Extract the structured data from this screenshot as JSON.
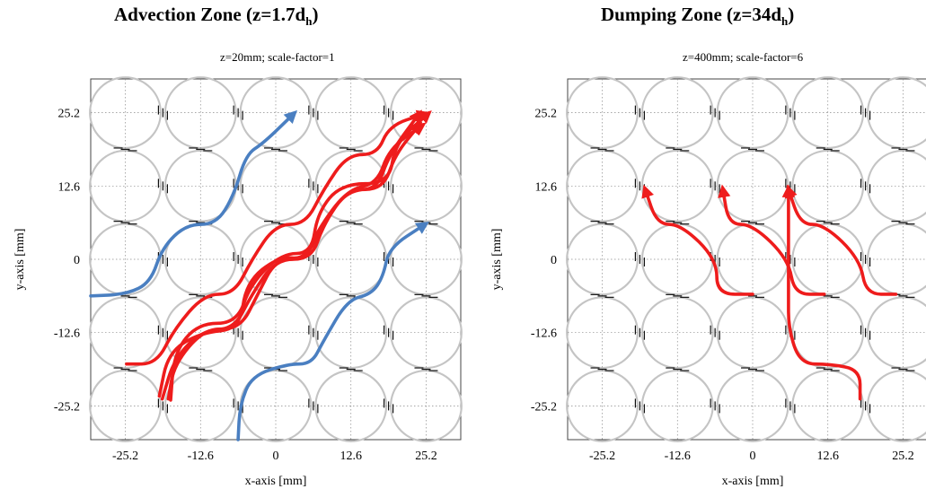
{
  "panels": [
    {
      "title_main": "Advection Zone (z=1.7d",
      "title_sub": "h",
      "title_close": ")",
      "subtitle": "z=20mm; scale-factor=1",
      "xlabel": "x-axis [mm]",
      "ylabel": "y-axis [mm]"
    },
    {
      "title_main": "Dumping Zone (z=34d",
      "title_sub": "h",
      "title_close": ")",
      "subtitle": "z=400mm; scale-factor=6",
      "xlabel": "x-axis [mm]",
      "ylabel": "y-axis [mm]"
    }
  ],
  "colors": {
    "red": "#ee1c1c",
    "blue": "#4a7fc1",
    "rod": "#c4c4c4",
    "grid": "#8a8a8a"
  },
  "chart_data": [
    {
      "type": "scatter",
      "title": "Advection Zone (z=1.7dh)",
      "subtitle": "z=20mm; scale-factor=1",
      "xlabel": "x-axis [mm]",
      "ylabel": "y-axis [mm]",
      "xticks": [
        -25.2,
        -12.6,
        0,
        12.6,
        25.2
      ],
      "yticks": [
        25.2,
        12.6,
        0,
        -12.6,
        -25.2
      ],
      "xlim": [
        -31,
        31
      ],
      "ylim": [
        -31,
        31
      ],
      "rods": {
        "pitch": 12.6,
        "centers": [
          -25.2,
          -12.6,
          0,
          12.6,
          25.2
        ]
      },
      "streams": [
        {
          "color": "red",
          "points": [
            [
              -25,
              -18
            ],
            [
              -20,
              -18
            ],
            [
              -17,
              -12
            ],
            [
              -12,
              -6
            ],
            [
              -7,
              -6
            ],
            [
              -4,
              0
            ],
            [
              0,
              6
            ],
            [
              5,
              6
            ],
            [
              8,
              12
            ],
            [
              12,
              18
            ],
            [
              17,
              18
            ],
            [
              19,
              23
            ],
            [
              25,
              25
            ]
          ]
        },
        {
          "color": "red",
          "points": [
            [
              -19,
              -24
            ],
            [
              -17,
              -17
            ],
            [
              -12,
              -12
            ],
            [
              -6,
              -12
            ],
            [
              -3,
              -6
            ],
            [
              0,
              0
            ],
            [
              5,
              0
            ],
            [
              8,
              6
            ],
            [
              12,
              12
            ],
            [
              17,
              12
            ],
            [
              19,
              18
            ],
            [
              24,
              25
            ]
          ]
        },
        {
          "color": "red",
          "points": [
            [
              -18,
              -24
            ],
            [
              -17,
              -18
            ],
            [
              -12,
              -12
            ],
            [
              -7,
              -12
            ],
            [
              -4,
              -6
            ],
            [
              0,
              0
            ],
            [
              6,
              0
            ],
            [
              8,
              6
            ],
            [
              12,
              12
            ],
            [
              18,
              12
            ],
            [
              20,
              18
            ],
            [
              24,
              23
            ]
          ]
        },
        {
          "color": "red",
          "points": [
            [
              -19.5,
              -23.5
            ],
            [
              -18,
              -16
            ],
            [
              -12.6,
              -12.6
            ],
            [
              -6,
              -12
            ],
            [
              -5,
              -4
            ],
            [
              0.5,
              0.5
            ],
            [
              5,
              0
            ],
            [
              7,
              5
            ],
            [
              12,
              12
            ],
            [
              17,
              13
            ],
            [
              19,
              19
            ],
            [
              24.5,
              23
            ]
          ]
        },
        {
          "color": "red",
          "points": [
            [
              -17.6,
              -24.2
            ],
            [
              -17,
              -16
            ],
            [
              -13,
              -11
            ],
            [
              -6.5,
              -11
            ],
            [
              -4.2,
              -4.2
            ],
            [
              1,
              1
            ],
            [
              6,
              1
            ],
            [
              7,
              8
            ],
            [
              11,
              13
            ],
            [
              19,
              13
            ],
            [
              20,
              20
            ],
            [
              25.5,
              25
            ]
          ]
        },
        {
          "color": "blue",
          "points": [
            [
              -31,
              -6.3
            ],
            [
              -25,
              -6
            ],
            [
              -21,
              -4
            ],
            [
              -19,
              2
            ],
            [
              -15,
              6
            ],
            [
              -10,
              6
            ],
            [
              -7,
              11
            ],
            [
              -5,
              18
            ],
            [
              -2,
              20
            ],
            [
              3,
              25
            ]
          ]
        },
        {
          "color": "blue",
          "points": [
            [
              -6.3,
              -31
            ],
            [
              -6,
              -25
            ],
            [
              -4,
              -20
            ],
            [
              2,
              -18
            ],
            [
              6,
              -18
            ],
            [
              8,
              -14
            ],
            [
              12,
              -7
            ],
            [
              16,
              -6
            ],
            [
              18,
              -3
            ],
            [
              19,
              2
            ],
            [
              25,
              6
            ]
          ]
        }
      ]
    },
    {
      "type": "scatter",
      "title": "Dumping Zone (z=34dh)",
      "subtitle": "z=400mm; scale-factor=6",
      "xlabel": "x-axis [mm]",
      "ylabel": "y-axis [mm]",
      "xticks": [
        -25.2,
        -12.6,
        0,
        12.6,
        25.2
      ],
      "yticks": [
        25.2,
        12.6,
        0,
        -12.6,
        -25.2
      ],
      "xlim": [
        -31,
        31
      ],
      "ylim": [
        -31,
        31
      ],
      "rods": {
        "pitch": 12.6,
        "centers": [
          -25.2,
          -12.6,
          0,
          12.6,
          25.2
        ]
      },
      "streams": [
        {
          "color": "red",
          "points": [
            [
              12,
              -6
            ],
            [
              7,
              -6
            ],
            [
              6,
              0
            ],
            [
              0,
              6
            ],
            [
              -4,
              6
            ],
            [
              -5,
              12
            ]
          ]
        },
        {
          "color": "red",
          "points": [
            [
              0,
              -6
            ],
            [
              -6,
              -6
            ],
            [
              -6,
              0
            ],
            [
              -12,
              6
            ],
            [
              -16,
              6
            ],
            [
              -18,
              12
            ]
          ]
        },
        {
          "color": "red",
          "points": [
            [
              18,
              -24
            ],
            [
              18,
              -19
            ],
            [
              13,
              -18
            ],
            [
              8,
              -18
            ],
            [
              6,
              -12
            ],
            [
              6,
              -6
            ],
            [
              6,
              6
            ],
            [
              6,
              12
            ]
          ]
        },
        {
          "color": "red",
          "points": [
            [
              24,
              -6
            ],
            [
              19,
              -6
            ],
            [
              18,
              0
            ],
            [
              12,
              6
            ],
            [
              8,
              6
            ],
            [
              6,
              12
            ]
          ]
        }
      ]
    }
  ]
}
